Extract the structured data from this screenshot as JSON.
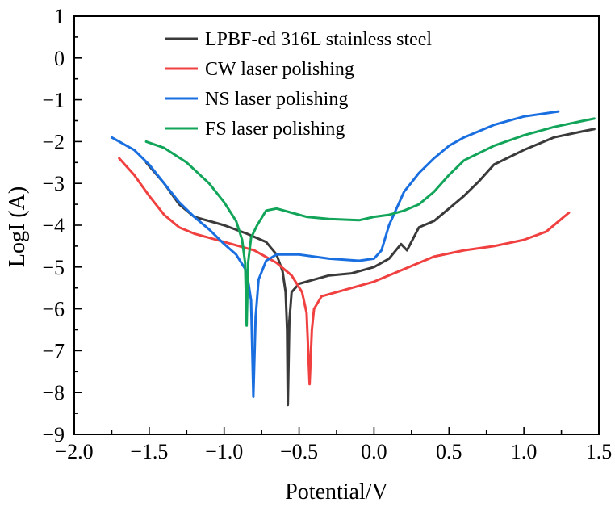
{
  "chart_data": {
    "type": "line",
    "title": "",
    "xlabel": "Potential/V",
    "ylabel": "LogI (A)",
    "xlim": [
      -2.0,
      1.5
    ],
    "ylim": [
      -9,
      1
    ],
    "xticks": [
      -2.0,
      -1.5,
      -1.0,
      -0.5,
      0.0,
      0.5,
      1.0,
      1.5
    ],
    "xtick_labels": [
      "−2.0",
      "−1.5",
      "−1.0",
      "−0.5",
      "0.0",
      "0.5",
      "1.0",
      "1.5"
    ],
    "yticks": [
      1,
      0,
      -1,
      -2,
      -3,
      -4,
      -5,
      -6,
      -7,
      -8,
      -9
    ],
    "ytick_labels": [
      "1",
      "0",
      "−1",
      "−2",
      "−3",
      "−4",
      "−5",
      "−6",
      "−7",
      "−8",
      "−9"
    ],
    "grid": false,
    "legend_position": "top-center",
    "series": [
      {
        "name": "LPBF-ed 316L stainless steel",
        "color": "#3a3a3a",
        "points": [
          [
            -1.52,
            -2.5
          ],
          [
            -1.4,
            -3.0
          ],
          [
            -1.3,
            -3.5
          ],
          [
            -1.2,
            -3.8
          ],
          [
            -1.0,
            -4.0
          ],
          [
            -0.85,
            -4.2
          ],
          [
            -0.72,
            -4.4
          ],
          [
            -0.65,
            -4.7
          ],
          [
            -0.61,
            -5.1
          ],
          [
            -0.59,
            -5.6
          ],
          [
            -0.58,
            -6.5
          ],
          [
            -0.575,
            -8.3
          ],
          [
            -0.565,
            -6.3
          ],
          [
            -0.55,
            -5.6
          ],
          [
            -0.5,
            -5.4
          ],
          [
            -0.4,
            -5.3
          ],
          [
            -0.3,
            -5.2
          ],
          [
            -0.15,
            -5.15
          ],
          [
            0.0,
            -5.0
          ],
          [
            0.1,
            -4.8
          ],
          [
            0.18,
            -4.45
          ],
          [
            0.22,
            -4.6
          ],
          [
            0.3,
            -4.05
          ],
          [
            0.4,
            -3.9
          ],
          [
            0.5,
            -3.6
          ],
          [
            0.6,
            -3.3
          ],
          [
            0.7,
            -2.95
          ],
          [
            0.8,
            -2.55
          ],
          [
            1.0,
            -2.2
          ],
          [
            1.2,
            -1.9
          ],
          [
            1.4,
            -1.75
          ],
          [
            1.47,
            -1.7
          ]
        ]
      },
      {
        "name": "CW laser polishing",
        "color": "#f04040",
        "points": [
          [
            -1.7,
            -2.4
          ],
          [
            -1.6,
            -2.8
          ],
          [
            -1.5,
            -3.3
          ],
          [
            -1.4,
            -3.75
          ],
          [
            -1.3,
            -4.05
          ],
          [
            -1.2,
            -4.2
          ],
          [
            -1.0,
            -4.4
          ],
          [
            -0.8,
            -4.6
          ],
          [
            -0.65,
            -4.9
          ],
          [
            -0.55,
            -5.2
          ],
          [
            -0.48,
            -5.6
          ],
          [
            -0.45,
            -6.1
          ],
          [
            -0.43,
            -7.8
          ],
          [
            -0.415,
            -6.5
          ],
          [
            -0.4,
            -6.0
          ],
          [
            -0.35,
            -5.7
          ],
          [
            -0.2,
            -5.55
          ],
          [
            0.0,
            -5.35
          ],
          [
            0.2,
            -5.05
          ],
          [
            0.4,
            -4.75
          ],
          [
            0.6,
            -4.6
          ],
          [
            0.8,
            -4.5
          ],
          [
            1.0,
            -4.35
          ],
          [
            1.15,
            -4.15
          ],
          [
            1.25,
            -3.85
          ],
          [
            1.3,
            -3.7
          ]
        ]
      },
      {
        "name": "NS laser polishing",
        "color": "#1a6fe0",
        "points": [
          [
            -1.75,
            -1.9
          ],
          [
            -1.6,
            -2.2
          ],
          [
            -1.5,
            -2.55
          ],
          [
            -1.4,
            -3.0
          ],
          [
            -1.3,
            -3.45
          ],
          [
            -1.2,
            -3.8
          ],
          [
            -1.1,
            -4.1
          ],
          [
            -1.0,
            -4.45
          ],
          [
            -0.92,
            -4.7
          ],
          [
            -0.85,
            -5.1
          ],
          [
            -0.82,
            -5.8
          ],
          [
            -0.805,
            -8.1
          ],
          [
            -0.79,
            -6.2
          ],
          [
            -0.77,
            -5.3
          ],
          [
            -0.72,
            -4.85
          ],
          [
            -0.65,
            -4.7
          ],
          [
            -0.5,
            -4.7
          ],
          [
            -0.3,
            -4.8
          ],
          [
            -0.1,
            -4.85
          ],
          [
            0.0,
            -4.8
          ],
          [
            0.05,
            -4.6
          ],
          [
            0.1,
            -4.0
          ],
          [
            0.2,
            -3.2
          ],
          [
            0.3,
            -2.75
          ],
          [
            0.4,
            -2.4
          ],
          [
            0.5,
            -2.1
          ],
          [
            0.6,
            -1.9
          ],
          [
            0.8,
            -1.6
          ],
          [
            1.0,
            -1.4
          ],
          [
            1.23,
            -1.28
          ]
        ]
      },
      {
        "name": "FS laser polishing",
        "color": "#12a55a",
        "points": [
          [
            -1.52,
            -2.0
          ],
          [
            -1.4,
            -2.15
          ],
          [
            -1.25,
            -2.5
          ],
          [
            -1.1,
            -3.0
          ],
          [
            -1.0,
            -3.45
          ],
          [
            -0.92,
            -3.9
          ],
          [
            -0.88,
            -4.35
          ],
          [
            -0.86,
            -4.9
          ],
          [
            -0.85,
            -6.4
          ],
          [
            -0.84,
            -4.9
          ],
          [
            -0.82,
            -4.3
          ],
          [
            -0.78,
            -4.0
          ],
          [
            -0.72,
            -3.65
          ],
          [
            -0.65,
            -3.6
          ],
          [
            -0.55,
            -3.7
          ],
          [
            -0.45,
            -3.8
          ],
          [
            -0.3,
            -3.85
          ],
          [
            -0.1,
            -3.88
          ],
          [
            0.0,
            -3.8
          ],
          [
            0.1,
            -3.75
          ],
          [
            0.2,
            -3.65
          ],
          [
            0.3,
            -3.5
          ],
          [
            0.4,
            -3.2
          ],
          [
            0.5,
            -2.8
          ],
          [
            0.6,
            -2.45
          ],
          [
            0.8,
            -2.1
          ],
          [
            1.0,
            -1.85
          ],
          [
            1.2,
            -1.65
          ],
          [
            1.4,
            -1.5
          ],
          [
            1.47,
            -1.45
          ]
        ]
      }
    ]
  }
}
